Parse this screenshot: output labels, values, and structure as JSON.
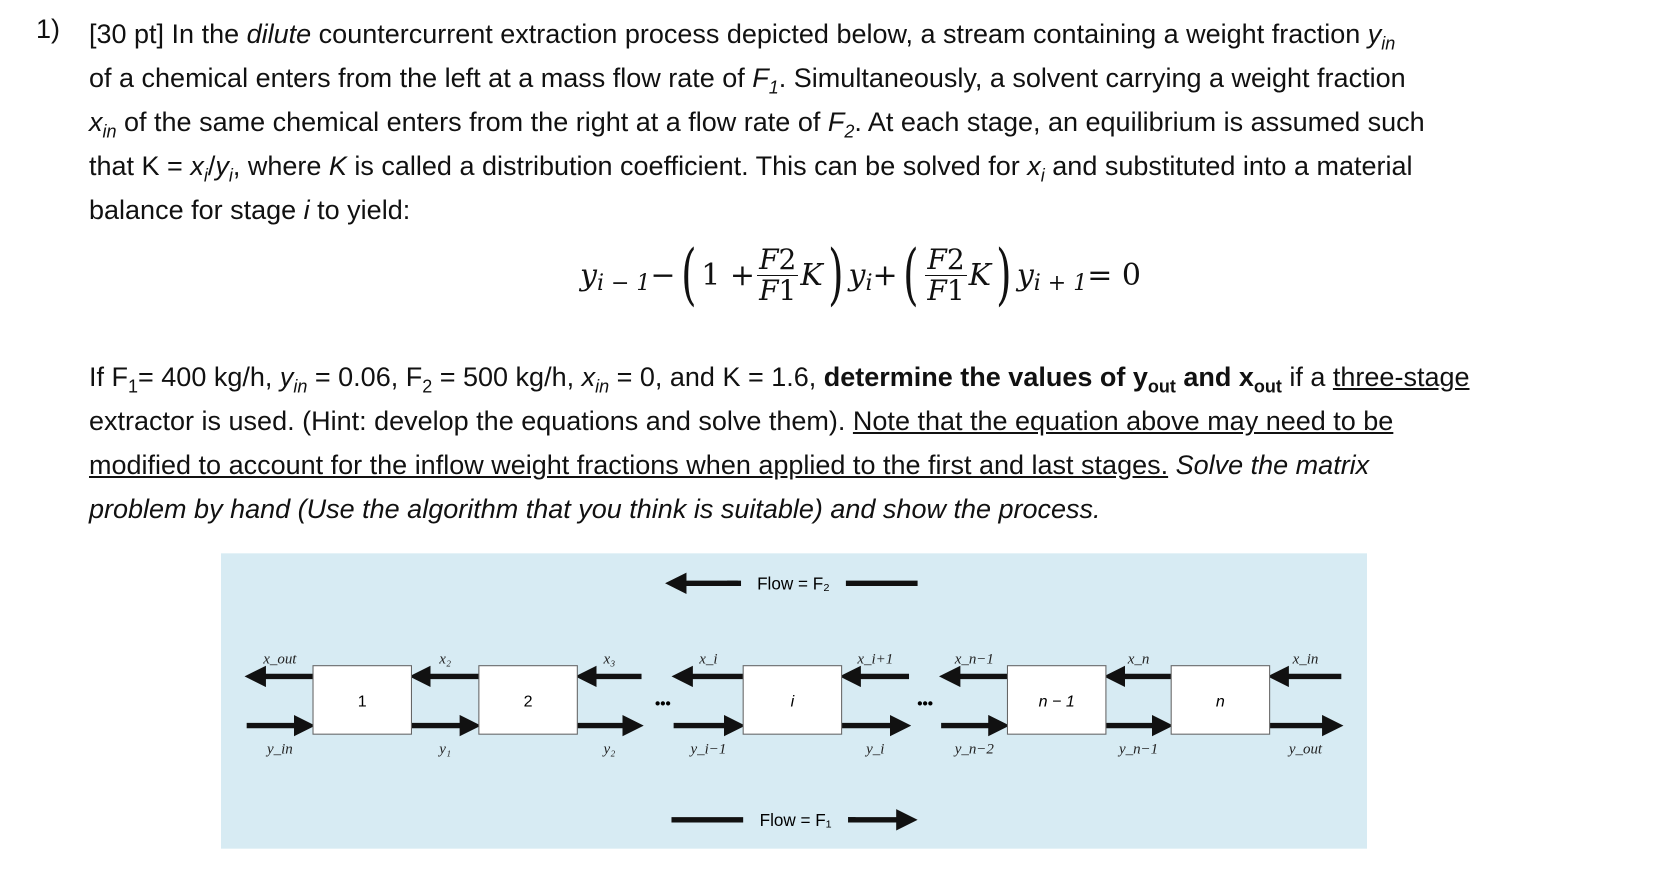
{
  "problem": {
    "number": "1)",
    "intro_lines": [
      [
        "[30 pt] In the ",
        "dilute",
        " countercurrent extraction process depicted below, a stream containing a weight fraction "
      ],
      [
        "of a chemical enters from the left at a mass flow rate of "
      ],
      [
        "of the same chemical enters from the right at a flow rate of "
      ],
      [
        "that K = "
      ],
      [
        "balance for stage "
      ]
    ],
    "t": {
      "l1_var": "y",
      "l1_sub": "in",
      "l2_var": "F",
      "l2_sub": "1",
      "l2_end": ". Simultaneously, a solvent carrying a weight fraction",
      "l3_var": "x",
      "l3_sub": "in",
      "l3_mid": " of the same chemical enters from the right at a flow rate of ",
      "l3_var2": "F",
      "l3_sub2": "2",
      "l3_end": ". At each stage, an equilibrium is assumed such",
      "l4_a": "that K = ",
      "l4_x": "x",
      "l4_xsub": "i",
      "l4_slash": "/",
      "l4_y": "y",
      "l4_ysub": "i",
      "l4_b": ", where ",
      "l4_K": "K",
      "l4_c": " is called a distribution coefficient. This can be solved for ",
      "l4_x2": "x",
      "l4_x2sub": "i",
      "l4_d": " and substituted into a material",
      "l5_a": "balance for stage ",
      "l5_i": "i",
      "l5_b": " to yield:"
    },
    "equation": {
      "y": "y",
      "i_minus_1": "i − 1",
      "minus": " − ",
      "one_plus": "1 + ",
      "F2": "F",
      "F2sub": "2",
      "F1": "F",
      "F1sub": "1",
      "K": "K",
      "yi": "y",
      "isub": "i",
      "plus": " + ",
      "i_plus_1": "i + 1",
      "eq_zero": " = 0"
    },
    "given": {
      "a": "If F",
      "a_sub": "1",
      "b": "= 400 kg/h, ",
      "y": "y",
      "y_sub": "in",
      "c": " = 0.06, F",
      "c_sub": "2",
      "d": " = 500 kg/h, ",
      "x": "x",
      "x_sub": "in",
      "e": " = 0, and K = 1.6, ",
      "bold_a": "determine the values of y",
      "bold_sub1": "out",
      "bold_b": " and x",
      "bold_sub2": "out",
      "f": " if a ",
      "u1": "three-stage",
      "l2_a": "extractor is used. (Hint: develop the equations and solve them). ",
      "l2_u": "Note that the equation above may need to be",
      "l3_u": "modified to account for the inflow weight fractions when applied to the first and last stages.",
      "l3_i": " Solve the matrix",
      "l4_i": "problem by hand (Use the algorithm that you think is suitable) and show the process."
    }
  },
  "diagram": {
    "background": "#d7ebf3",
    "flow_top": "Flow = F₂",
    "flow_bottom": "Flow = F₁",
    "stages": [
      "1",
      "2",
      "i",
      "n − 1",
      "n"
    ],
    "top_labels": [
      "x_out",
      "x₂",
      "x₃",
      "x_i",
      "x_i+1",
      "x_n−1",
      "x_n",
      "x_in"
    ],
    "bottom_labels": [
      "y_in",
      "y₁",
      "y₂",
      "y_i−1",
      "y_i",
      "y_n−2",
      "y_n−1",
      "y_out"
    ],
    "ellipsis": "•••"
  }
}
